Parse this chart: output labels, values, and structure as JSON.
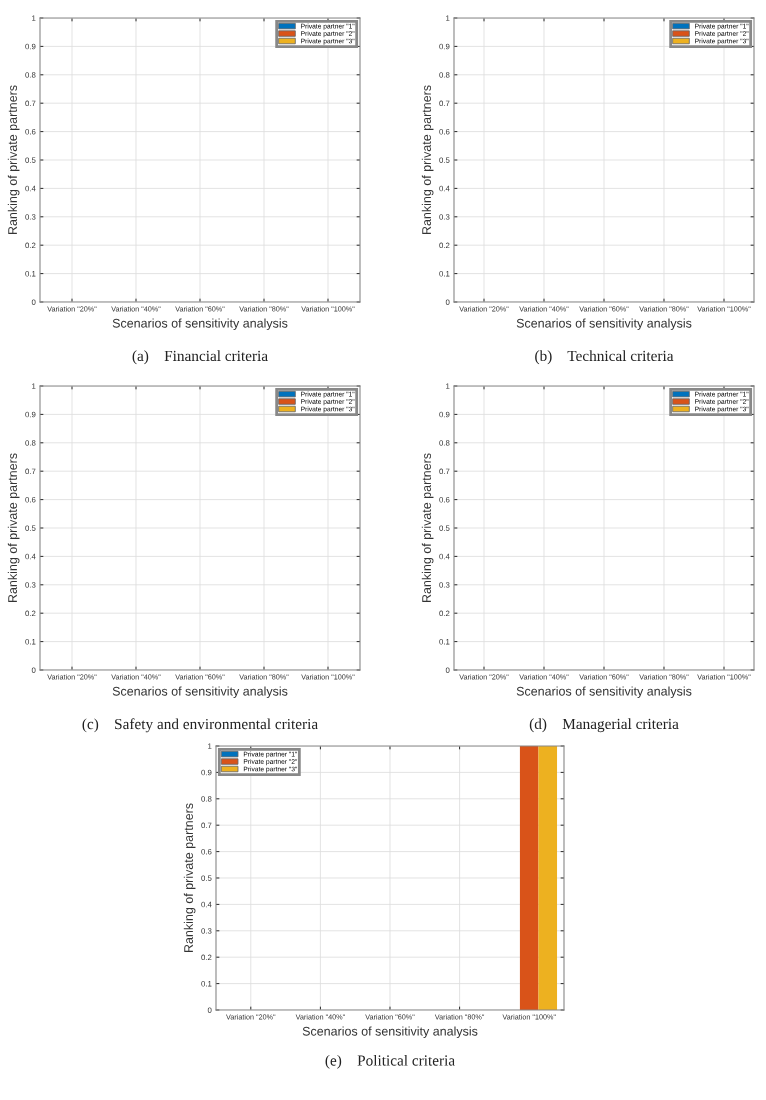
{
  "chart_data": [
    {
      "type": "bar",
      "title": "(a)    Financial criteria",
      "xlabel": "Scenarios of sensitivity analysis",
      "ylabel": "Ranking of private partners",
      "categories": [
        "Variation \"20%\"",
        "Variation \"40%\"",
        "Variation \"60%\"",
        "Variation \"80%\"",
        "Variation \"100%\""
      ],
      "series": [
        {
          "name": "Private partner \"1\"",
          "color": "#0072bd",
          "values": [
            0,
            0,
            0,
            0,
            0
          ]
        },
        {
          "name": "Private partner \"2\"",
          "color": "#d95319",
          "values": [
            0,
            0,
            0,
            0,
            0
          ]
        },
        {
          "name": "Private partner \"3\"",
          "color": "#edb120",
          "values": [
            0,
            0,
            0,
            0,
            0
          ]
        }
      ],
      "ylim": [
        0,
        1
      ],
      "yticks": [
        0,
        0.1,
        0.2,
        0.3,
        0.4,
        0.5,
        0.6,
        0.7,
        0.8,
        0.9,
        1
      ],
      "grid": true,
      "legend": "top right"
    },
    {
      "type": "bar",
      "title": "(b)    Technical criteria",
      "xlabel": "Scenarios of sensitivity analysis",
      "ylabel": "Ranking of private partners",
      "categories": [
        "Variation \"20%\"",
        "Variation \"40%\"",
        "Variation \"60%\"",
        "Variation \"80%\"",
        "Variation \"100%\""
      ],
      "series": [
        {
          "name": "Private partner \"1\"",
          "color": "#0072bd",
          "values": [
            0,
            0,
            0,
            0,
            0
          ]
        },
        {
          "name": "Private partner \"2\"",
          "color": "#d95319",
          "values": [
            0,
            0,
            0,
            0,
            0
          ]
        },
        {
          "name": "Private partner \"3\"",
          "color": "#edb120",
          "values": [
            0,
            0,
            0,
            0,
            0
          ]
        }
      ],
      "ylim": [
        0,
        1
      ],
      "yticks": [
        0,
        0.1,
        0.2,
        0.3,
        0.4,
        0.5,
        0.6,
        0.7,
        0.8,
        0.9,
        1
      ],
      "grid": true,
      "legend": "top right"
    },
    {
      "type": "bar",
      "title": "(c)    Safety and environmental criteria",
      "xlabel": "Scenarios of sensitivity analysis",
      "ylabel": "Ranking of private partners",
      "categories": [
        "Variation \"20%\"",
        "Variation \"40%\"",
        "Variation \"60%\"",
        "Variation \"80%\"",
        "Variation \"100%\""
      ],
      "series": [
        {
          "name": "Private partner \"1\"",
          "color": "#0072bd",
          "values": [
            0,
            0,
            0,
            0,
            0
          ]
        },
        {
          "name": "Private partner \"2\"",
          "color": "#d95319",
          "values": [
            0,
            0,
            0,
            0,
            0
          ]
        },
        {
          "name": "Private partner \"3\"",
          "color": "#edb120",
          "values": [
            0,
            0,
            0,
            0,
            0
          ]
        }
      ],
      "ylim": [
        0,
        1
      ],
      "yticks": [
        0,
        0.1,
        0.2,
        0.3,
        0.4,
        0.5,
        0.6,
        0.7,
        0.8,
        0.9,
        1
      ],
      "grid": true,
      "legend": "top right"
    },
    {
      "type": "bar",
      "title": "(d)    Managerial criteria",
      "xlabel": "Scenarios of sensitivity analysis",
      "ylabel": "Ranking of private partners",
      "categories": [
        "Variation \"20%\"",
        "Variation \"40%\"",
        "Variation \"60%\"",
        "Variation \"80%\"",
        "Variation \"100%\""
      ],
      "series": [
        {
          "name": "Private partner \"1\"",
          "color": "#0072bd",
          "values": [
            0,
            0,
            0,
            0,
            0
          ]
        },
        {
          "name": "Private partner \"2\"",
          "color": "#d95319",
          "values": [
            0,
            0,
            0,
            0,
            0
          ]
        },
        {
          "name": "Private partner \"3\"",
          "color": "#edb120",
          "values": [
            0,
            0,
            0,
            0,
            0
          ]
        }
      ],
      "ylim": [
        0,
        1
      ],
      "yticks": [
        0,
        0.1,
        0.2,
        0.3,
        0.4,
        0.5,
        0.6,
        0.7,
        0.8,
        0.9,
        1
      ],
      "grid": true,
      "legend": "top right"
    },
    {
      "type": "bar",
      "title": "(e)    Political criteria",
      "xlabel": "Scenarios of sensitivity analysis",
      "ylabel": "Ranking of private partners",
      "categories": [
        "Variation \"20%\"",
        "Variation \"40%\"",
        "Variation \"60%\"",
        "Variation \"80%\"",
        "Variation \"100%\""
      ],
      "series": [
        {
          "name": "Private partner \"1\"",
          "color": "#0072bd",
          "values": [
            0,
            0,
            0,
            0,
            0
          ]
        },
        {
          "name": "Private partner \"2\"",
          "color": "#d95319",
          "values": [
            0,
            0,
            0,
            0,
            1
          ]
        },
        {
          "name": "Private partner \"3\"",
          "color": "#edb120",
          "values": [
            0,
            0,
            0,
            0,
            1
          ]
        }
      ],
      "ylim": [
        0,
        1
      ],
      "yticks": [
        0,
        0.1,
        0.2,
        0.3,
        0.4,
        0.5,
        0.6,
        0.7,
        0.8,
        0.9,
        1
      ],
      "grid": true,
      "legend": "top left"
    }
  ]
}
